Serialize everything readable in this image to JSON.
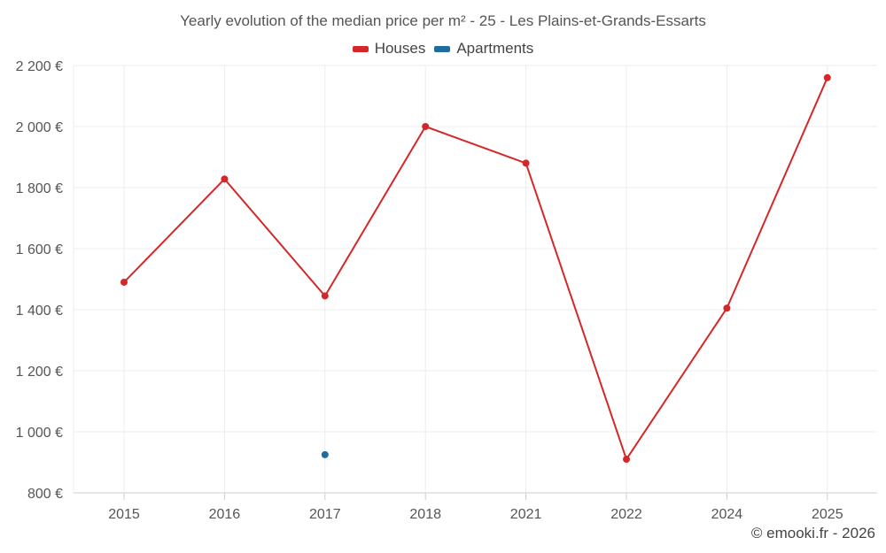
{
  "chart_data": {
    "type": "line",
    "title": "Yearly evolution of the median price per m² - 25 - Les Plains-et-Grands-Essarts",
    "categories": [
      "2015",
      "2016",
      "2017",
      "2018",
      "2021",
      "2022",
      "2024",
      "2025"
    ],
    "series": [
      {
        "name": "Houses",
        "color": "#d62728",
        "values": [
          1490,
          1828,
          1445,
          2000,
          1880,
          910,
          1405,
          2160
        ]
      },
      {
        "name": "Apartments",
        "color": "#1f6d9c",
        "values": [
          null,
          null,
          925,
          null,
          null,
          null,
          null,
          null
        ]
      }
    ],
    "y_ticks": [
      800,
      1000,
      1200,
      1400,
      1600,
      1800,
      2000,
      2200
    ],
    "y_tick_labels": [
      "800 €",
      "1 000 €",
      "1 200 €",
      "1 400 €",
      "1 600 €",
      "1 800 €",
      "2 000 €",
      "2 200 €"
    ],
    "ylim": [
      800,
      2200
    ],
    "xlabel": "",
    "ylabel": "",
    "grid": true,
    "legend_position": "top-center"
  },
  "footer": {
    "copyright": "© emooki.fr - 2026"
  }
}
